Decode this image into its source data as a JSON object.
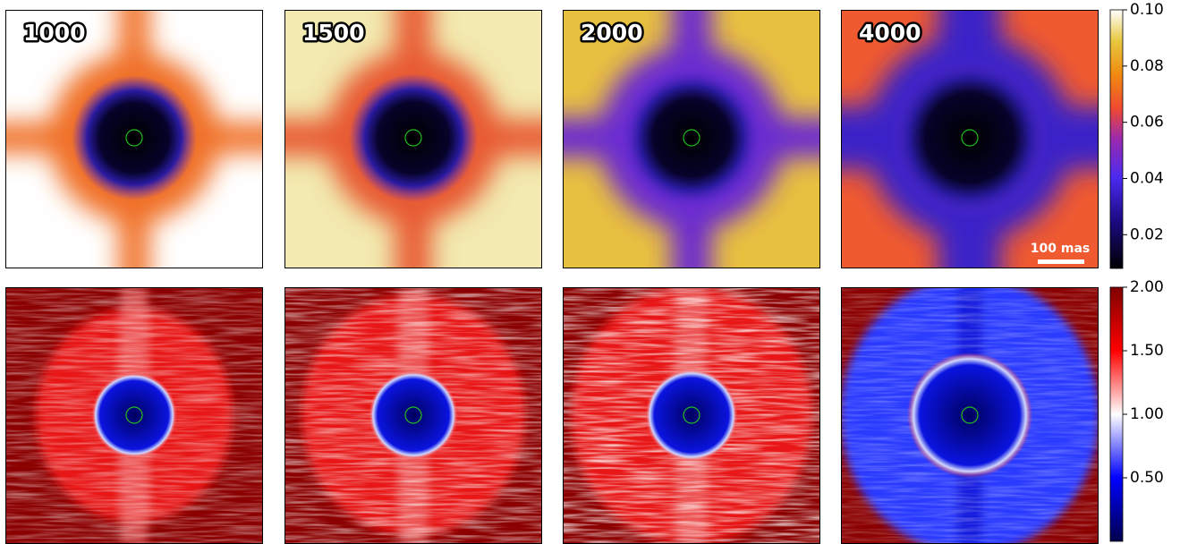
{
  "chart_data": [
    {
      "type": "heatmap",
      "cmap": "gnuplot2",
      "panels": [
        "1000",
        "1500",
        "2000",
        "4000"
      ],
      "scale_bar": "100 mas",
      "clim": [
        0.008,
        0.1
      ],
      "cticks": [
        0.02,
        0.04,
        0.06,
        0.08,
        {
          "value": 0.1,
          "label": "0.10"
        }
      ]
    },
    {
      "type": "heatmap",
      "cmap": "seismic",
      "clim": [
        0,
        2
      ],
      "cticks": [
        {
          "value": 0.5,
          "label": "0.50"
        },
        {
          "value": 1,
          "label": "1.00"
        },
        {
          "value": 1.5,
          "label": "1.50"
        },
        {
          "value": 2,
          "label": "2.00"
        }
      ]
    }
  ]
}
